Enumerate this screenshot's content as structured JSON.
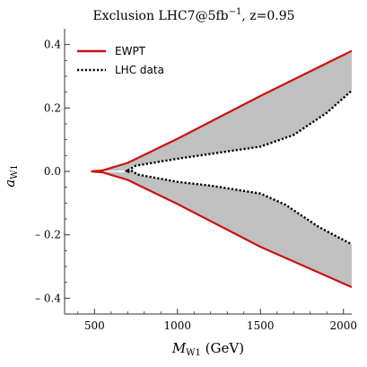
{
  "chart_data": {
    "type": "area",
    "title": {
      "main": "Exclusion  LHC7@5fb",
      "sup": "−1",
      "tail": ",  z=0.95"
    },
    "xlabel": {
      "symbol": "M",
      "sub": "W1",
      "unit": " (GeV)"
    },
    "ylabel": {
      "symbol": "a",
      "sub": "W1"
    },
    "xlim": [
      320,
      2050
    ],
    "ylim": [
      -0.45,
      0.45
    ],
    "xticks": [
      {
        "value": 500,
        "label": "500"
      },
      {
        "value": 1000,
        "label": "1000"
      },
      {
        "value": 1500,
        "label": "1500"
      },
      {
        "value": 2000,
        "label": "2000"
      }
    ],
    "yticks": [
      {
        "value": 0.4,
        "label": "0.4"
      },
      {
        "value": 0.2,
        "label": "0.2"
      },
      {
        "value": 0.0,
        "label": "0.0"
      },
      {
        "value": -0.2,
        "label": "– 0.2"
      },
      {
        "value": -0.4,
        "label": "– 0.4"
      }
    ],
    "legend": {
      "position": "top-left",
      "entries": [
        {
          "label": "EWPT",
          "style": "solid",
          "color": "#cc1111"
        },
        {
          "label": "LHC data",
          "style": "dotted",
          "color": "#000000"
        }
      ]
    },
    "fill_color": "#c0c0c0",
    "series": [
      {
        "name": "EWPT",
        "style": "solid",
        "color": "#cc1111",
        "upper": [
          [
            480,
            0.0
          ],
          [
            550,
            0.003
          ],
          [
            700,
            0.027
          ],
          [
            1000,
            0.103
          ],
          [
            1500,
            0.238
          ],
          [
            2050,
            0.38
          ]
        ],
        "lower": [
          [
            480,
            0.0
          ],
          [
            550,
            -0.003
          ],
          [
            700,
            -0.027
          ],
          [
            1000,
            -0.103
          ],
          [
            1500,
            -0.238
          ],
          [
            2050,
            -0.365
          ]
        ]
      },
      {
        "name": "LHC data",
        "style": "dotted",
        "color": "#000000",
        "upper": [
          [
            700,
            0.003
          ],
          [
            750,
            0.018
          ],
          [
            1000,
            0.04
          ],
          [
            1500,
            0.078
          ],
          [
            1700,
            0.115
          ],
          [
            1900,
            0.185
          ],
          [
            2050,
            0.255
          ]
        ],
        "lower": [
          [
            700,
            -0.003
          ],
          [
            720,
            0.003
          ],
          [
            760,
            -0.01
          ],
          [
            1000,
            -0.033
          ],
          [
            1200,
            -0.045
          ],
          [
            1500,
            -0.07
          ],
          [
            1650,
            -0.105
          ],
          [
            1850,
            -0.175
          ],
          [
            2050,
            -0.23
          ]
        ],
        "start_cap": [
          [
            700,
            0.003
          ],
          [
            690,
            0.0
          ],
          [
            700,
            -0.003
          ]
        ]
      }
    ]
  }
}
